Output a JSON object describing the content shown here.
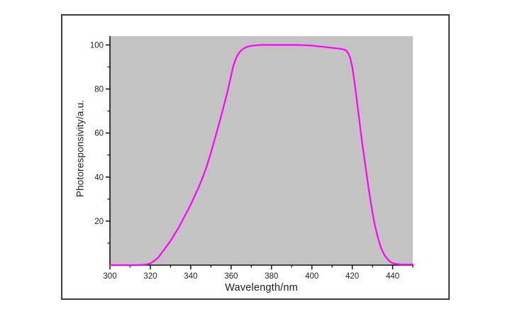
{
  "chart_data": {
    "type": "line",
    "title": "",
    "xlabel": "Wavelength/nm",
    "ylabel": "Photoresponsivity/a.u.",
    "xlim": [
      300,
      450
    ],
    "ylim": [
      0,
      104
    ],
    "grid": false,
    "legend": "none",
    "plot_bg_color": "#c3c3c3",
    "axis_color": "#111111",
    "tick_label_color": "#222222",
    "line_color": "#ff00ff",
    "x_tick_labels": [
      "300",
      "320",
      "340",
      "360",
      "380",
      "400",
      "420",
      "440"
    ],
    "x_major_ticks": [
      300,
      320,
      340,
      360,
      380,
      400,
      420,
      440
    ],
    "x_minor_ticks": [
      310,
      330,
      350,
      370,
      390,
      410,
      430,
      450
    ],
    "y_tick_labels": [
      "20",
      "40",
      "60",
      "80",
      "100"
    ],
    "y_major_ticks": [
      20,
      40,
      60,
      80,
      100
    ],
    "y_minor_ticks": [
      10,
      30,
      50,
      70,
      90
    ],
    "series": [
      {
        "name": "photoresponsivity",
        "x": [
          300,
          304,
          308,
          312,
          315,
          318,
          320,
          322,
          324,
          326,
          328,
          330,
          332,
          334,
          336,
          338,
          340,
          342,
          344,
          346,
          348,
          350,
          352,
          354,
          356,
          358,
          360,
          361,
          362,
          363,
          364,
          365,
          366,
          368,
          370,
          373,
          376,
          380,
          384,
          388,
          392,
          396,
          400,
          403,
          406,
          409,
          412,
          414,
          416,
          417,
          418,
          419,
          420,
          421,
          422,
          423,
          424,
          425,
          426,
          427,
          428,
          429,
          430,
          431,
          432,
          433,
          434,
          435,
          436,
          437,
          438,
          439,
          440,
          442,
          444,
          446,
          448,
          450
        ],
        "y": [
          0,
          0,
          0,
          0,
          0.1,
          0.3,
          0.8,
          2,
          3.5,
          6,
          8.5,
          11,
          14,
          17,
          20.5,
          24,
          27.5,
          31.5,
          35.5,
          40,
          45,
          51,
          57.5,
          64,
          71,
          78,
          86,
          90,
          93,
          95,
          96.5,
          97.5,
          98.3,
          99.2,
          99.6,
          99.9,
          100,
          100,
          100,
          100,
          100,
          99.9,
          99.7,
          99.4,
          99.1,
          98.8,
          98.5,
          98.3,
          97.9,
          97.4,
          96.3,
          94,
          90,
          84,
          77,
          69.5,
          62,
          55,
          48.5,
          42,
          35.5,
          29.5,
          24,
          19,
          15,
          11.5,
          8.5,
          6.3,
          4.5,
          3.2,
          2.2,
          1.4,
          0.9,
          0.5,
          0.3,
          0.3,
          0.3,
          0.3
        ]
      }
    ]
  }
}
